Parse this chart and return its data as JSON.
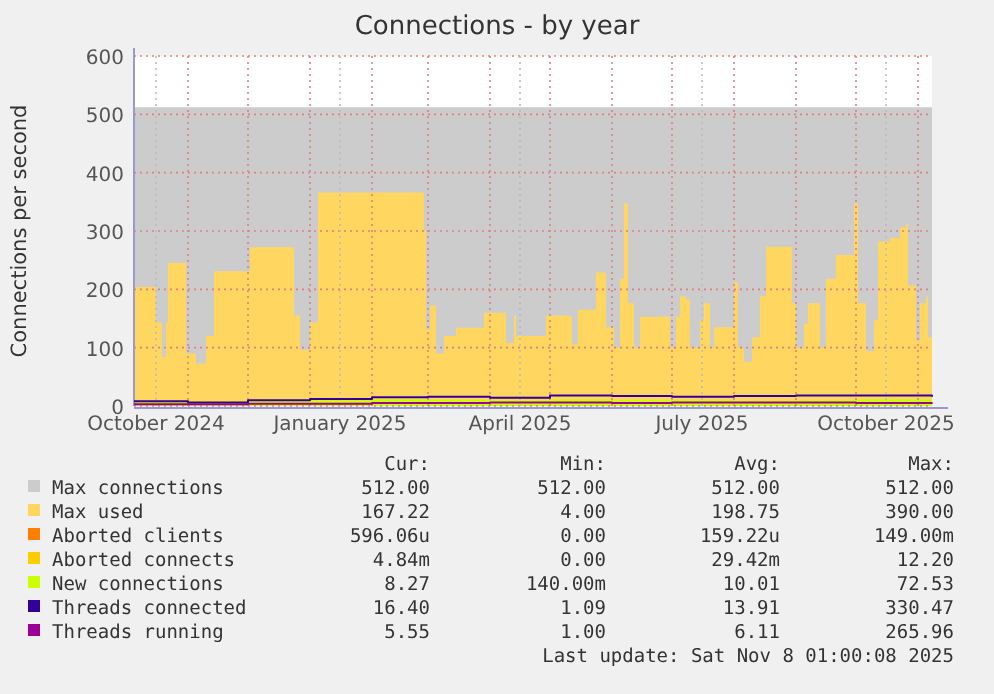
{
  "chart_data": {
    "type": "area",
    "title": "Connections - by year",
    "ylabel": "Connections per second",
    "xlim": [
      "2024-10-05",
      "2025-11-08"
    ],
    "xticks": [
      {
        "value": "2024-10-16",
        "label": "October 2024"
      },
      {
        "value": "2024-11-01",
        "label": null
      },
      {
        "value": "2024-12-01",
        "label": null
      },
      {
        "value": "2025-01-01",
        "label": null
      },
      {
        "value": "2025-01-16",
        "label": "January 2025"
      },
      {
        "value": "2025-02-01",
        "label": null
      },
      {
        "value": "2025-03-01",
        "label": null
      },
      {
        "value": "2025-04-01",
        "label": null
      },
      {
        "value": "2025-04-16",
        "label": "April 2025"
      },
      {
        "value": "2025-05-01",
        "label": null
      },
      {
        "value": "2025-06-01",
        "label": null
      },
      {
        "value": "2025-07-01",
        "label": null
      },
      {
        "value": "2025-07-16",
        "label": "July 2025"
      },
      {
        "value": "2025-08-01",
        "label": null
      },
      {
        "value": "2025-09-01",
        "label": null
      },
      {
        "value": "2025-10-01",
        "label": null
      },
      {
        "value": "2025-10-16",
        "label": "October 2025"
      },
      {
        "value": "2025-11-01",
        "label": null
      }
    ],
    "ylim": [
      0,
      600
    ],
    "yticks": [
      0,
      100,
      200,
      300,
      400,
      500,
      600
    ],
    "grid": true,
    "legend": "bottom",
    "series": [
      {
        "name": "Max connections",
        "color": "#cccccc",
        "x": [
          "2024-10-05",
          "2025-11-08"
        ],
        "values": [
          512,
          512
        ]
      },
      {
        "name": "Max used",
        "color": "#ffd660",
        "x": [
          "2024-10-05",
          "2024-10-15",
          "2024-10-16",
          "2024-10-19",
          "2024-10-21",
          "2024-10-22",
          "2024-10-30",
          "2024-10-31",
          "2024-11-05",
          "2024-11-10",
          "2024-11-14",
          "2024-11-27",
          "2024-12-02",
          "2024-12-22",
          "2024-12-24",
          "2024-12-27",
          "2025-01-01",
          "2025-01-05",
          "2025-02-24",
          "2025-02-27",
          "2025-02-28",
          "2025-03-02",
          "2025-03-05",
          "2025-03-09",
          "2025-03-15",
          "2025-03-27",
          "2025-03-29",
          "2025-04-06",
          "2025-04-09",
          "2025-04-13",
          "2025-04-14",
          "2025-04-26",
          "2025-04-29",
          "2025-05-06",
          "2025-05-11",
          "2025-05-12",
          "2025-05-15",
          "2025-05-21",
          "2025-05-24",
          "2025-05-27",
          "2025-05-29",
          "2025-06-02",
          "2025-06-05",
          "2025-06-07",
          "2025-06-09",
          "2025-06-12",
          "2025-06-15",
          "2025-06-28",
          "2025-06-30",
          "2025-07-03",
          "2025-07-05",
          "2025-07-08",
          "2025-07-10",
          "2025-07-15",
          "2025-07-17",
          "2025-07-20",
          "2025-07-22",
          "2025-07-30",
          "2025-08-01",
          "2025-08-03",
          "2025-08-06",
          "2025-08-10",
          "2025-08-14",
          "2025-08-17",
          "2025-08-27",
          "2025-08-30",
          "2025-09-01",
          "2025-09-05",
          "2025-09-07",
          "2025-09-11",
          "2025-09-13",
          "2025-09-16",
          "2025-09-21",
          "2025-09-26",
          "2025-09-30",
          "2025-10-02",
          "2025-10-06",
          "2025-10-10",
          "2025-10-12",
          "2025-10-18",
          "2025-10-23",
          "2025-10-26",
          "2025-10-27",
          "2025-10-31",
          "2025-11-02",
          "2025-11-05",
          "2025-11-06",
          "2025-11-08"
        ],
        "values": [
          204,
          204,
          143,
          84,
          143,
          245,
          245,
          90,
          73,
          120,
          231,
          231,
          272,
          272,
          155,
          96,
          143,
          366,
          366,
          301,
          131,
          172,
          90,
          120,
          134,
          134,
          160,
          160,
          108,
          155,
          120,
          120,
          155,
          155,
          153,
          106,
          165,
          165,
          229,
          229,
          135,
          100,
          218,
          347,
          176,
          100,
          153,
          153,
          100,
          153,
          188,
          182,
          100,
          147,
          176,
          100,
          135,
          135,
          212,
          100,
          76,
          118,
          188,
          273,
          273,
          176,
          100,
          141,
          176,
          176,
          100,
          218,
          259,
          259,
          347,
          176,
          94,
          147,
          282,
          288,
          306,
          312,
          206,
          112,
          176,
          188,
          118,
          167
        ]
      },
      {
        "name": "Aborted clients",
        "color": "#ff7f00",
        "type": "line",
        "values": [
          null,
          null
        ]
      },
      {
        "name": "Aborted connects",
        "color": "#ffcc00",
        "type": "line",
        "values": [
          null,
          null
        ]
      },
      {
        "name": "New connections",
        "color": "#ccff00",
        "x": [
          "2024-10-05",
          "2024-11-01",
          "2024-12-01",
          "2025-01-01",
          "2025-02-01",
          "2025-03-01",
          "2025-04-01",
          "2025-05-01",
          "2025-06-01",
          "2025-07-01",
          "2025-08-01",
          "2025-09-01",
          "2025-10-01",
          "2025-11-08"
        ],
        "values": [
          10,
          8,
          9,
          10,
          11,
          10,
          10,
          11,
          10,
          10,
          9,
          10,
          11,
          8
        ]
      },
      {
        "name": "Threads connected",
        "color": "#330099",
        "type": "line",
        "x": [
          "2024-10-05",
          "2024-11-01",
          "2024-12-01",
          "2025-01-01",
          "2025-02-01",
          "2025-03-01",
          "2025-04-01",
          "2025-05-01",
          "2025-06-01",
          "2025-07-01",
          "2025-08-01",
          "2025-09-01",
          "2025-10-01",
          "2025-11-08"
        ],
        "values": [
          8,
          6,
          10,
          12,
          15,
          16,
          14,
          18,
          17,
          16,
          17,
          18,
          18,
          16
        ]
      },
      {
        "name": "Threads running",
        "color": "#990099",
        "type": "line",
        "x": [
          "2024-10-05",
          "2024-11-01",
          "2024-12-01",
          "2025-01-01",
          "2025-02-01",
          "2025-03-01",
          "2025-04-01",
          "2025-05-01",
          "2025-06-01",
          "2025-07-01",
          "2025-08-01",
          "2025-09-01",
          "2025-10-01",
          "2025-11-08"
        ],
        "values": [
          3,
          3,
          4,
          4,
          5,
          5,
          6,
          6,
          5,
          6,
          6,
          6,
          5,
          6
        ]
      }
    ],
    "annotations": [
      "Cur:",
      "Min:",
      "Avg:",
      "Max:",
      "512.00",
      "512.00",
      "512.00",
      "512.00",
      "167.22",
      "4.00",
      "198.75",
      "390.00",
      "596.06u",
      "0.00",
      "159.22u",
      "149.00m",
      "4.84m",
      "0.00",
      "29.42m",
      "12.20",
      "8.27",
      "140.00m",
      "10.01",
      "72.53",
      "16.40",
      "1.09",
      "13.91",
      "330.47",
      "5.55",
      "1.00",
      "6.11",
      "265.96",
      "Last update: Sat Nov  8 01:00:08 2025"
    ]
  }
}
